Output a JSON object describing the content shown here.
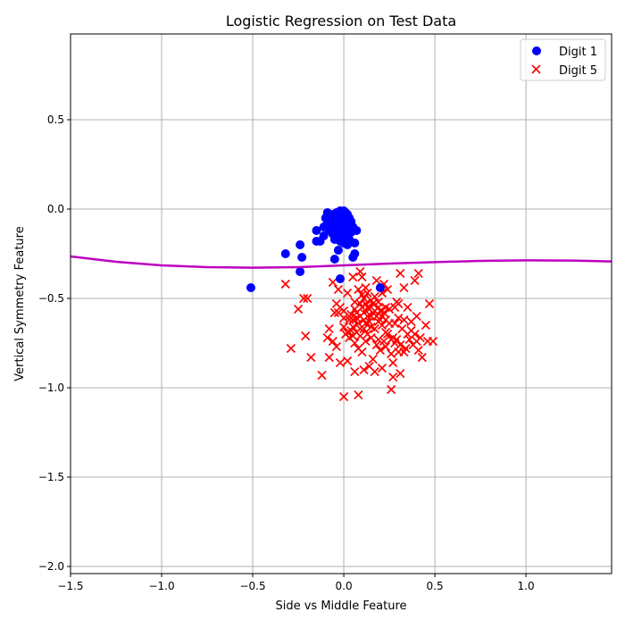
{
  "chart_data": {
    "type": "scatter",
    "title": "Logistic Regression on Test Data",
    "xlabel": "Side vs Middle Feature",
    "ylabel": "Vertical Symmetry Feature",
    "xlim": [
      -1.5,
      1.47
    ],
    "ylim": [
      -2.04,
      0.98
    ],
    "xticks": [
      -1.5,
      -1.0,
      -0.5,
      0.0,
      0.5,
      1.0
    ],
    "xtick_labels": [
      "−1.5",
      "−1.0",
      "−0.5",
      "0.0",
      "0.5",
      "1.0"
    ],
    "yticks": [
      0.5,
      0.0,
      -0.5,
      -1.0,
      -1.5,
      -2.0
    ],
    "ytick_labels": [
      "0.5",
      "0.0",
      "−0.5",
      "−1.0",
      "−1.5",
      "−2.0"
    ],
    "grid": true,
    "legend_placement": "top-right",
    "series": [
      {
        "name": "Digit 1",
        "marker": "circle",
        "color": "#0000ff",
        "points": [
          [
            -0.51,
            -0.44
          ],
          [
            -0.32,
            -0.25
          ],
          [
            -0.24,
            -0.2
          ],
          [
            -0.23,
            -0.27
          ],
          [
            -0.24,
            -0.35
          ],
          [
            -0.15,
            -0.12
          ],
          [
            -0.15,
            -0.18
          ],
          [
            -0.13,
            -0.18
          ],
          [
            -0.11,
            -0.15
          ],
          [
            -0.05,
            -0.28
          ],
          [
            -0.02,
            -0.39
          ],
          [
            0.05,
            -0.27
          ],
          [
            0.06,
            -0.25
          ],
          [
            0.06,
            -0.19
          ],
          [
            0.07,
            -0.12
          ],
          [
            -0.03,
            -0.23
          ],
          [
            0.02,
            -0.2
          ],
          [
            0.2,
            -0.44
          ],
          [
            -0.1,
            -0.05
          ],
          [
            -0.08,
            -0.04
          ],
          [
            -0.06,
            -0.03
          ],
          [
            -0.04,
            -0.02
          ],
          [
            -0.02,
            -0.01
          ],
          [
            0.0,
            -0.01
          ],
          [
            0.02,
            -0.03
          ],
          [
            0.03,
            -0.05
          ],
          [
            0.04,
            -0.07
          ],
          [
            -0.09,
            -0.08
          ],
          [
            -0.07,
            -0.1
          ],
          [
            -0.05,
            -0.06
          ],
          [
            -0.03,
            -0.05
          ],
          [
            -0.01,
            -0.04
          ],
          [
            0.01,
            -0.06
          ],
          [
            0.03,
            -0.09
          ],
          [
            -0.08,
            -0.12
          ],
          [
            -0.06,
            -0.14
          ],
          [
            -0.04,
            -0.11
          ],
          [
            -0.02,
            -0.09
          ],
          [
            0.0,
            -0.08
          ],
          [
            0.02,
            -0.11
          ],
          [
            0.04,
            -0.13
          ],
          [
            -0.05,
            -0.17
          ],
          [
            -0.03,
            -0.15
          ],
          [
            -0.01,
            -0.13
          ],
          [
            0.01,
            -0.15
          ],
          [
            0.03,
            -0.17
          ],
          [
            -0.02,
            -0.18
          ],
          [
            0.0,
            -0.19
          ],
          [
            -0.06,
            -0.08
          ],
          [
            -0.04,
            -0.08
          ],
          [
            0.01,
            -0.02
          ],
          [
            -0.09,
            -0.02
          ],
          [
            -0.07,
            -0.06
          ],
          [
            0.05,
            -0.1
          ],
          [
            -0.11,
            -0.1
          ],
          [
            -0.03,
            -0.12
          ],
          [
            0.02,
            -0.07
          ],
          [
            -0.01,
            -0.16
          ],
          [
            0.0,
            -0.11
          ],
          [
            -0.05,
            -0.1
          ]
        ]
      },
      {
        "name": "Digit 5",
        "marker": "x",
        "color": "#ff0000",
        "points": [
          [
            -0.32,
            -0.42
          ],
          [
            -0.25,
            -0.56
          ],
          [
            -0.29,
            -0.78
          ],
          [
            -0.21,
            -0.71
          ],
          [
            -0.2,
            -0.5
          ],
          [
            -0.22,
            -0.5
          ],
          [
            -0.18,
            -0.83
          ],
          [
            -0.12,
            -0.93
          ],
          [
            -0.09,
            -0.72
          ],
          [
            -0.08,
            -0.67
          ],
          [
            -0.08,
            -0.83
          ],
          [
            0.0,
            -1.05
          ],
          [
            0.08,
            -1.04
          ],
          [
            0.26,
            -1.01
          ],
          [
            0.27,
            -0.94
          ],
          [
            0.02,
            -0.85
          ],
          [
            -0.02,
            -0.86
          ],
          [
            0.49,
            -0.74
          ],
          [
            0.47,
            -0.53
          ],
          [
            0.41,
            -0.36
          ],
          [
            0.31,
            -0.36
          ],
          [
            0.33,
            -0.44
          ],
          [
            0.09,
            -0.35
          ],
          [
            0.1,
            -0.38
          ],
          [
            0.05,
            -0.38
          ],
          [
            -0.06,
            -0.41
          ],
          [
            -0.03,
            -0.45
          ],
          [
            -0.04,
            -0.53
          ],
          [
            -0.05,
            -0.58
          ],
          [
            -0.02,
            -0.55
          ],
          [
            0.0,
            -0.57
          ],
          [
            0.02,
            -0.47
          ],
          [
            0.03,
            -0.62
          ],
          [
            0.05,
            -0.66
          ],
          [
            0.06,
            -0.52
          ],
          [
            0.07,
            -0.58
          ],
          [
            0.08,
            -0.45
          ],
          [
            0.09,
            -0.6
          ],
          [
            0.1,
            -0.55
          ],
          [
            0.11,
            -0.5
          ],
          [
            0.12,
            -0.64
          ],
          [
            0.13,
            -0.47
          ],
          [
            0.14,
            -0.56
          ],
          [
            0.15,
            -0.6
          ],
          [
            0.16,
            -0.53
          ],
          [
            0.17,
            -0.67
          ],
          [
            0.18,
            -0.4
          ],
          [
            0.19,
            -0.55
          ],
          [
            0.2,
            -0.62
          ],
          [
            0.21,
            -0.47
          ],
          [
            0.22,
            -0.58
          ],
          [
            0.23,
            -0.69
          ],
          [
            0.24,
            -0.45
          ],
          [
            0.25,
            -0.64
          ],
          [
            0.27,
            -0.72
          ],
          [
            0.28,
            -0.55
          ],
          [
            0.29,
            -0.52
          ],
          [
            0.3,
            -0.61
          ],
          [
            0.31,
            -0.76
          ],
          [
            0.32,
            -0.67
          ],
          [
            0.33,
            -0.8
          ],
          [
            0.35,
            -0.55
          ],
          [
            0.36,
            -0.73
          ],
          [
            0.37,
            -0.63
          ],
          [
            0.38,
            -0.76
          ],
          [
            0.39,
            -0.7
          ],
          [
            0.4,
            -0.6
          ],
          [
            0.41,
            -0.79
          ],
          [
            0.42,
            -0.72
          ],
          [
            0.43,
            -0.83
          ],
          [
            0.45,
            -0.65
          ],
          [
            0.46,
            -0.74
          ],
          [
            0.0,
            -0.66
          ],
          [
            0.01,
            -0.7
          ],
          [
            0.03,
            -0.72
          ],
          [
            0.04,
            -0.68
          ],
          [
            0.06,
            -0.75
          ],
          [
            0.07,
            -0.69
          ],
          [
            0.08,
            -0.78
          ],
          [
            0.09,
            -0.71
          ],
          [
            0.1,
            -0.8
          ],
          [
            0.11,
            -0.67
          ],
          [
            0.12,
            -0.74
          ],
          [
            0.13,
            -0.7
          ],
          [
            0.14,
            -0.88
          ],
          [
            0.15,
            -0.72
          ],
          [
            0.16,
            -0.84
          ],
          [
            0.17,
            -0.91
          ],
          [
            0.18,
            -0.76
          ],
          [
            0.19,
            -0.73
          ],
          [
            0.2,
            -0.79
          ],
          [
            0.21,
            -0.89
          ],
          [
            0.22,
            -0.74
          ],
          [
            0.23,
            -0.77
          ],
          [
            0.24,
            -0.7
          ],
          [
            0.26,
            -0.81
          ],
          [
            0.27,
            -0.86
          ],
          [
            0.28,
            -0.75
          ],
          [
            0.29,
            -0.73
          ],
          [
            0.3,
            -0.8
          ],
          [
            0.31,
            -0.92
          ],
          [
            0.34,
            -0.78
          ],
          [
            0.37,
            -0.68
          ],
          [
            -0.03,
            -0.58
          ],
          [
            0.0,
            -0.61
          ],
          [
            0.02,
            -0.69
          ],
          [
            0.04,
            -0.59
          ],
          [
            0.05,
            -0.62
          ],
          [
            0.06,
            -0.56
          ],
          [
            0.08,
            -0.64
          ],
          [
            0.09,
            -0.53
          ],
          [
            0.1,
            -0.48
          ],
          [
            0.11,
            -0.58
          ],
          [
            0.12,
            -0.53
          ],
          [
            0.13,
            -0.6
          ],
          [
            0.14,
            -0.63
          ],
          [
            0.15,
            -0.51
          ],
          [
            0.16,
            -0.58
          ],
          [
            0.17,
            -0.49
          ],
          [
            0.18,
            -0.6
          ],
          [
            0.19,
            -0.52
          ],
          [
            0.2,
            -0.57
          ],
          [
            0.21,
            -0.65
          ],
          [
            0.22,
            -0.42
          ],
          [
            0.23,
            -0.62
          ],
          [
            0.25,
            -0.56
          ],
          [
            0.26,
            -0.73
          ],
          [
            0.28,
            -0.64
          ],
          [
            0.3,
            -0.53
          ],
          [
            0.33,
            -0.62
          ],
          [
            0.35,
            -0.7
          ],
          [
            0.39,
            -0.4
          ],
          [
            0.4,
            -0.74
          ],
          [
            0.05,
            -0.71
          ],
          [
            0.07,
            -0.61
          ],
          [
            0.09,
            -0.67
          ],
          [
            0.11,
            -0.62
          ],
          [
            0.13,
            -0.55
          ],
          [
            0.15,
            -0.66
          ],
          [
            0.17,
            -0.57
          ],
          [
            0.19,
            -0.63
          ],
          [
            0.21,
            -0.6
          ],
          [
            0.11,
            -0.9
          ],
          [
            -0.06,
            -0.74
          ],
          [
            -0.04,
            -0.77
          ],
          [
            0.06,
            -0.91
          ],
          [
            0.03,
            -0.6
          ],
          [
            0.23,
            -0.55
          ],
          [
            0.12,
            -0.44
          ]
        ]
      }
    ],
    "decision_boundary": {
      "color": "#bf00bf",
      "x": [
        -1.5,
        -1.25,
        -1.0,
        -0.75,
        -0.5,
        -0.25,
        0.0,
        0.25,
        0.5,
        0.75,
        1.0,
        1.25,
        1.47
      ],
      "y": [
        -0.265,
        -0.295,
        -0.315,
        -0.325,
        -0.328,
        -0.325,
        -0.315,
        -0.305,
        -0.297,
        -0.29,
        -0.287,
        -0.288,
        -0.293
      ]
    }
  }
}
